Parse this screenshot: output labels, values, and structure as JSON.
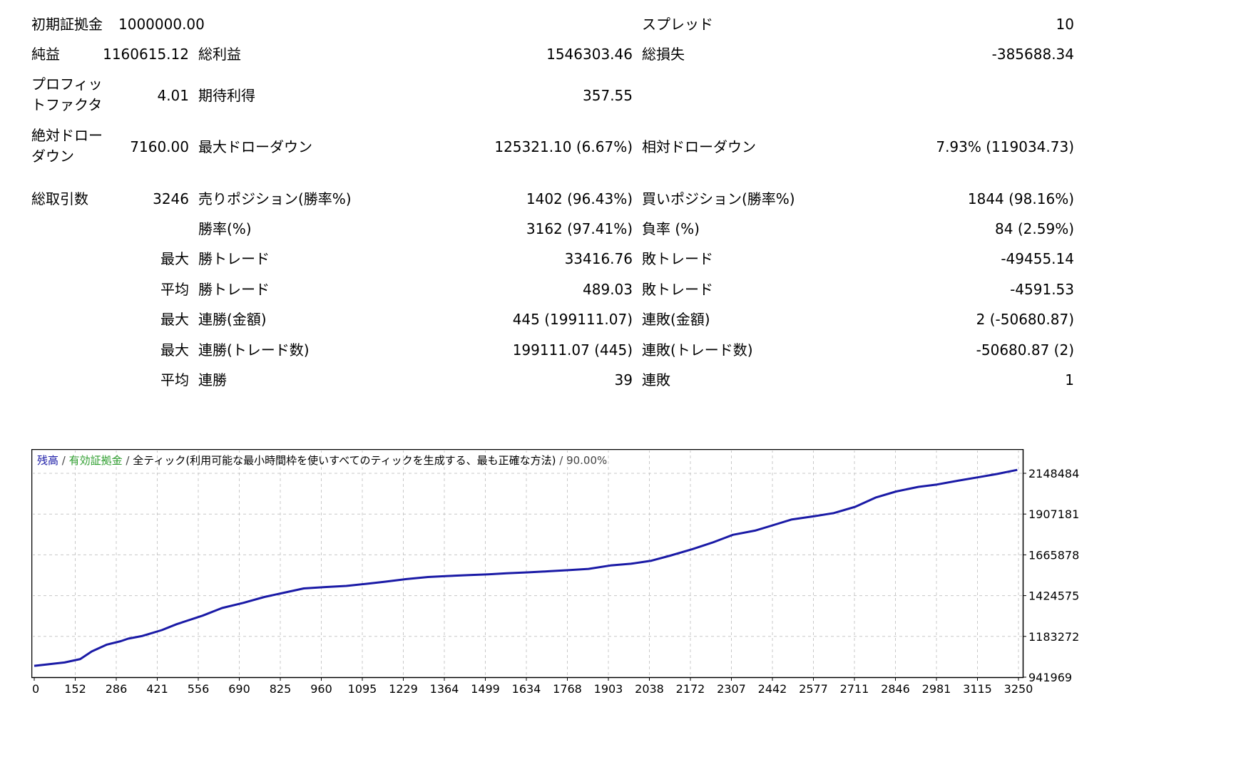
{
  "summary": {
    "initial_deposit": {
      "label": "初期証拠金",
      "value": "1000000.00"
    },
    "spread": {
      "label": "スプレッド",
      "value": "10"
    },
    "net_profit": {
      "label": "純益",
      "value": "1160615.12"
    },
    "gross_profit": {
      "label": "総利益",
      "value": "1546303.46"
    },
    "gross_loss": {
      "label": "総損失",
      "value": "-385688.34"
    },
    "profit_factor": {
      "label_line1": "プロフィッ",
      "label_line2": "トファクタ",
      "value": "4.01"
    },
    "expected_payoff": {
      "label": "期待利得",
      "value": "357.55"
    },
    "absolute_drawdown": {
      "label_line1": "絶対ドロー",
      "label_line2": "ダウン",
      "value": "7160.00"
    },
    "maximal_drawdown": {
      "label": "最大ドローダウン",
      "value": "125321.10 (6.67%)"
    },
    "relative_drawdown": {
      "label": "相対ドローダウン",
      "value": "7.93% (119034.73)"
    }
  },
  "trades": {
    "total": {
      "label": "総取引数",
      "value": "3246"
    },
    "short": {
      "label": "売りポジション(勝率%)",
      "value": "1402 (96.43%)"
    },
    "long": {
      "label": "買いポジション(勝率%)",
      "value": "1844 (98.16%)"
    },
    "win_rate": {
      "label": "勝率(%)",
      "value": "3162 (97.41%)"
    },
    "loss_rate": {
      "label": "負率 (%)",
      "value": "84 (2.59%)"
    },
    "largest": {
      "prefix": "最大",
      "win_label": "勝トレード",
      "win_value": "33416.76",
      "loss_label": "敗トレード",
      "loss_value": "-49455.14"
    },
    "average": {
      "prefix": "平均",
      "win_label": "勝トレード",
      "win_value": "489.03",
      "loss_label": "敗トレード",
      "loss_value": "-4591.53"
    },
    "max_consec_amount": {
      "prefix": "最大",
      "win_label": "連勝(金額)",
      "win_value": "445 (199111.07)",
      "loss_label": "連敗(金額)",
      "loss_value": "2 (-50680.87)"
    },
    "max_consec_count": {
      "prefix": "最大",
      "win_label": "連勝(トレード数)",
      "win_value": "199111.07 (445)",
      "loss_label": "連敗(トレード数)",
      "loss_value": "-50680.87 (2)"
    },
    "avg_consec": {
      "prefix": "平均",
      "win_label": "連勝",
      "win_value": "39",
      "loss_label": "連敗",
      "loss_value": "1"
    }
  },
  "chart_data": {
    "type": "line",
    "legend": {
      "balance": "残高",
      "sep1": " / ",
      "equity": "有効証拠金",
      "sep2": " / ",
      "model": "全ティック(利用可能な最小時間枠を使いすべてのティックを生成する、最も正確な方法)",
      "sep3": " / ",
      "quality": "90.00%"
    },
    "colors": {
      "balance": "#1a1aa6",
      "equity": "#2e9e2e",
      "grid": "#c8c8c8",
      "legend_model": "#000000",
      "legend_sep": "#444444"
    },
    "x_ticks": [
      "0",
      "152",
      "286",
      "421",
      "556",
      "690",
      "825",
      "960",
      "1095",
      "1229",
      "1364",
      "1499",
      "1634",
      "1768",
      "1903",
      "2038",
      "2172",
      "2307",
      "2442",
      "2577",
      "2711",
      "2846",
      "2981",
      "3115",
      "3250"
    ],
    "y_ticks": [
      "2148484",
      "1907181",
      "1665878",
      "1424575",
      "1183272",
      "941969"
    ],
    "xlim": [
      0,
      3246
    ],
    "ylim": [
      941969,
      2148484
    ],
    "grid": true,
    "series": [
      {
        "key": "balance",
        "x": [
          0,
          100,
          152,
          190,
          240,
          286,
          310,
          355,
          421,
          470,
          556,
          620,
          690,
          760,
          825,
          890,
          960,
          1030,
          1095,
          1160,
          1229,
          1300,
          1364,
          1430,
          1499,
          1560,
          1634,
          1700,
          1768,
          1830,
          1903,
          1970,
          2038,
          2100,
          2172,
          2240,
          2307,
          2380,
          2442,
          2500,
          2577,
          2640,
          2711,
          2780,
          2846,
          2920,
          2981,
          3050,
          3115,
          3180,
          3246
        ],
        "y": [
          1000000,
          1020000,
          1040000,
          1085000,
          1125000,
          1145000,
          1160000,
          1175000,
          1210000,
          1245000,
          1295000,
          1340000,
          1370000,
          1405000,
          1430000,
          1455000,
          1463000,
          1470000,
          1482000,
          1495000,
          1510000,
          1522000,
          1528000,
          1533000,
          1538000,
          1544000,
          1550000,
          1556000,
          1563000,
          1570000,
          1590000,
          1600000,
          1618000,
          1648000,
          1685000,
          1725000,
          1770000,
          1795000,
          1828000,
          1860000,
          1880000,
          1898000,
          1935000,
          1990000,
          2025000,
          2052000,
          2066000,
          2088000,
          2108000,
          2128000,
          2152000
        ]
      }
    ]
  }
}
